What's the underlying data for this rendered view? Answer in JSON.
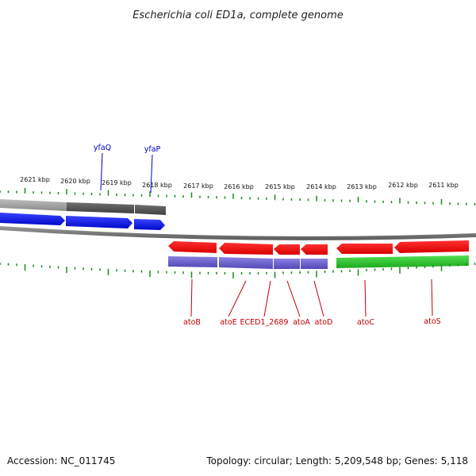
{
  "title": "Escherichia coli ED1a, complete genome",
  "footer": {
    "accession": "Accession: NC_011745",
    "summary": "Topology: circular; Length: 5,209,548 bp; Genes: 5,118"
  },
  "colors": {
    "forward_gene": "#0a14e6",
    "reverse_gene": "#f01010",
    "cds_purple": "#6a5ccc",
    "other_green": "#2cc82c",
    "ticks": "#1a8a1a",
    "backbone": "#888888",
    "top_label": "#0000c8",
    "bottom_label": "#c00000"
  },
  "scale": {
    "unit": "kbp",
    "labels": [
      "2621 kbp",
      "2620 kbp",
      "2619 kbp",
      "2618 kbp",
      "2617 kbp",
      "2616 kbp",
      "2615 kbp",
      "2614 kbp",
      "2613 kbp",
      "2612 kbp",
      "2611 kbp"
    ]
  },
  "genes_top": [
    {
      "name": "yfaQ"
    },
    {
      "name": "yfaP"
    }
  ],
  "genes_bottom": [
    {
      "name": "atoB"
    },
    {
      "name": "atoE"
    },
    {
      "name": "ECED1_2689"
    },
    {
      "name": "atoA"
    },
    {
      "name": "atoD"
    },
    {
      "name": "atoC"
    },
    {
      "name": "atoS"
    }
  ]
}
